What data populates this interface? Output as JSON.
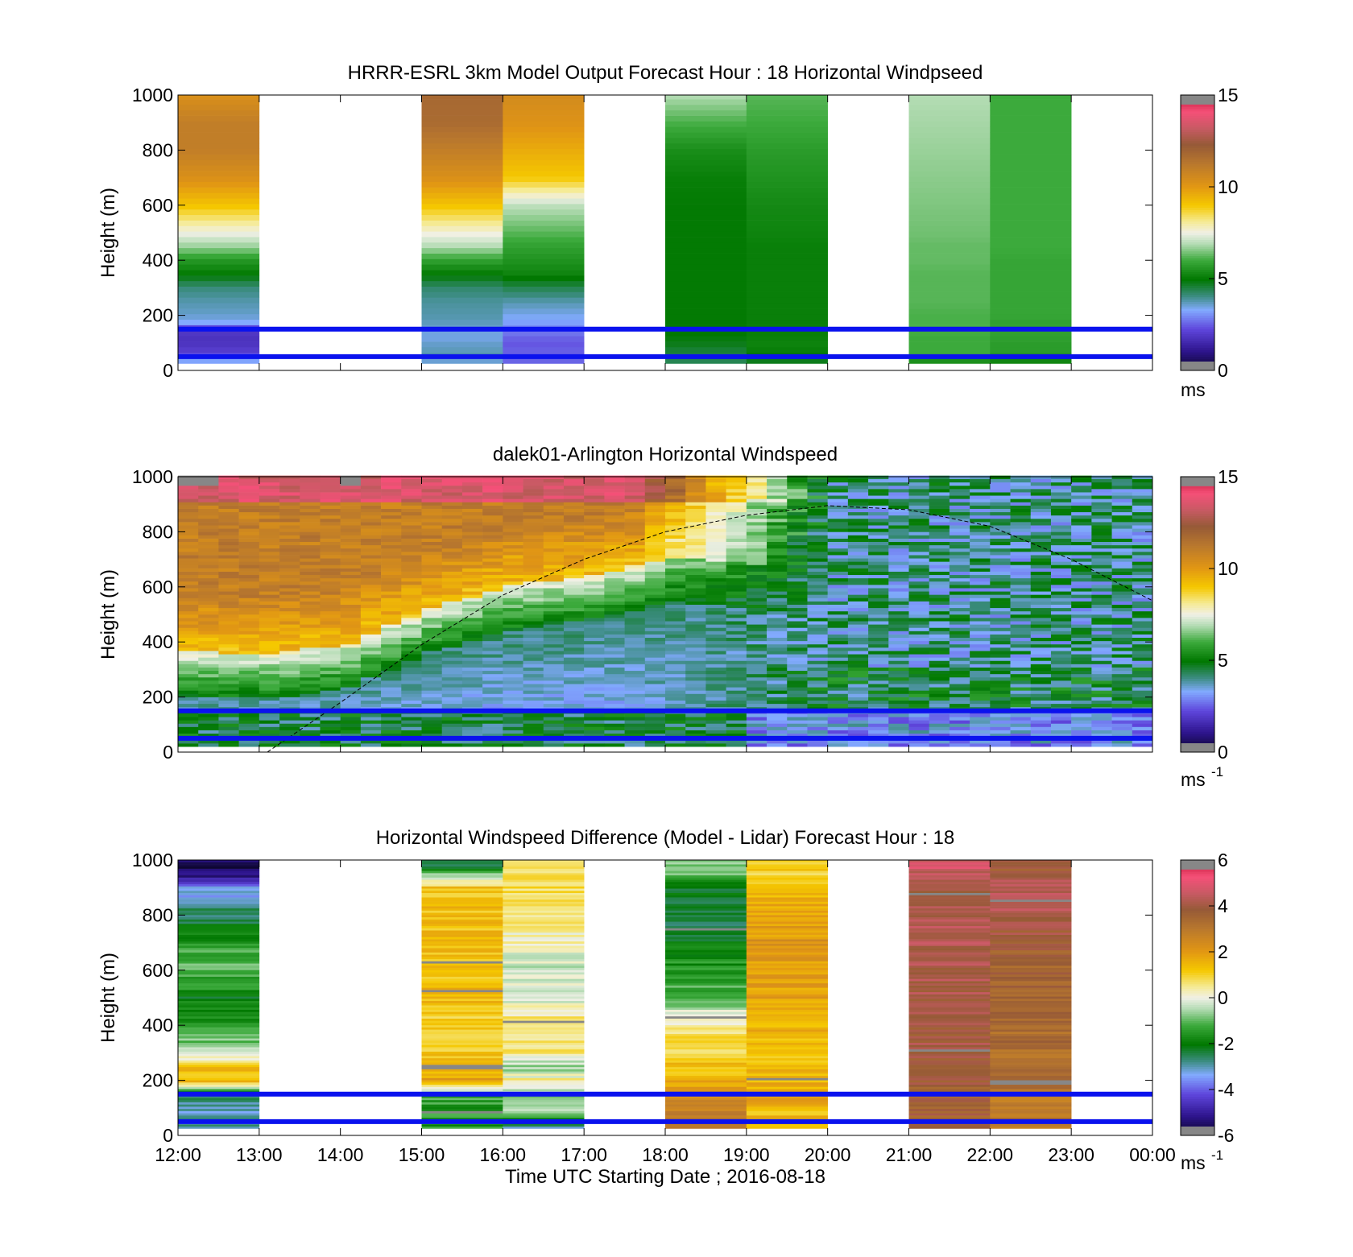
{
  "figure": {
    "xlabel": "Time UTC  Starting Date ; 2016-08-18",
    "x_ticks": [
      "12:00",
      "13:00",
      "14:00",
      "15:00",
      "16:00",
      "17:00",
      "18:00",
      "19:00",
      "20:00",
      "21:00",
      "22:00",
      "23:00",
      "00:00"
    ],
    "reference_heights_m": [
      50,
      150
    ],
    "reference_line_color": "#0a12ee"
  },
  "chart_data": [
    {
      "type": "heatmap",
      "title": "HRRR-ESRL 3km Model Output   Forecast Hour : 18 Horizontal Windpseed",
      "ylabel": "Height (m)",
      "xlim": [
        12,
        24
      ],
      "ylim": [
        0,
        1000
      ],
      "y_ticks": [
        "0",
        "200",
        "400",
        "600",
        "800",
        "1000"
      ],
      "colorbar": {
        "min": 0,
        "max": 15,
        "ticks": [
          "0",
          "5",
          "10",
          "15"
        ],
        "label": "ms"
      },
      "z_heights_m": [
        25,
        50,
        75,
        100,
        125,
        150,
        175,
        200,
        250,
        300,
        350,
        400,
        450,
        500,
        600,
        700,
        800,
        900,
        1000
      ],
      "columns": [
        {
          "start_hour": 12,
          "values": [
            3.8,
            2.4,
            2.0,
            1.8,
            1.8,
            2.0,
            3.3,
            3.6,
            3.8,
            4.1,
            5.0,
            5.6,
            6.7,
            7.5,
            9.1,
            10.3,
            11.0,
            11.0,
            10.3
          ]
        },
        {
          "start_hour": 15,
          "values": [
            3.4,
            3.8,
            3.7,
            3.6,
            3.4,
            3.6,
            3.7,
            3.8,
            3.9,
            4.2,
            5.0,
            5.8,
            6.9,
            7.6,
            9.1,
            10.3,
            11.0,
            11.7,
            11.8
          ]
        },
        {
          "start_hour": 16,
          "values": [
            2.6,
            2.5,
            2.5,
            2.4,
            2.6,
            2.9,
            3.2,
            3.4,
            3.8,
            4.4,
            5.2,
            5.5,
            5.8,
            6.2,
            7.0,
            9.0,
            9.6,
            10.2,
            10.5
          ]
        },
        {
          "start_hour": 18,
          "values": [
            4.3,
            4.5,
            4.6,
            4.8,
            4.9,
            5.0,
            5.0,
            5.0,
            5.0,
            5.0,
            5.0,
            5.0,
            5.0,
            5.0,
            5.0,
            5.1,
            5.4,
            6.1,
            6.9
          ]
        },
        {
          "start_hour": 19,
          "values": [
            4.6,
            5.0,
            5.1,
            5.2,
            5.1,
            5.1,
            5.1,
            5.1,
            5.1,
            5.1,
            5.1,
            5.1,
            5.1,
            5.2,
            5.3,
            5.5,
            5.7,
            6.0,
            6.2
          ]
        },
        {
          "start_hour": 21,
          "values": [
            5.1,
            6.0,
            6.0,
            6.0,
            6.0,
            6.1,
            6.1,
            6.1,
            6.2,
            6.2,
            6.2,
            6.3,
            6.3,
            6.4,
            6.5,
            6.6,
            6.7,
            6.8,
            6.9
          ]
        },
        {
          "start_hour": 22,
          "values": [
            5.0,
            5.6,
            5.7,
            5.7,
            5.8,
            5.8,
            5.8,
            5.9,
            5.9,
            5.9,
            5.9,
            5.9,
            6.0,
            6.0,
            6.0,
            6.0,
            6.0,
            6.0,
            6.0
          ]
        }
      ]
    },
    {
      "type": "heatmap",
      "title": "dalek01-Arlington  Horizontal Windspeed",
      "ylabel": "Height (m)",
      "xlim": [
        12,
        24
      ],
      "ylim": [
        0,
        1000
      ],
      "y_ticks": [
        "0",
        "200",
        "400",
        "600",
        "800",
        "1000"
      ],
      "colorbar": {
        "min": 0,
        "max": 15,
        "ticks": [
          "0",
          "5",
          "10",
          "15"
        ],
        "label": "ms",
        "label_sup": "-1"
      },
      "time_step_hours": 0.25,
      "time_range_hours": [
        12,
        23.83
      ],
      "boundary_layer_top_m": [
        [
          12,
          280
        ],
        [
          13,
          270
        ],
        [
          14,
          310
        ],
        [
          15,
          440
        ],
        [
          16,
          520
        ],
        [
          17,
          560
        ],
        [
          18,
          620
        ],
        [
          19,
          600
        ],
        [
          20,
          560
        ],
        [
          21,
          520
        ],
        [
          22,
          500
        ],
        [
          23,
          470
        ],
        [
          23.8,
          460
        ]
      ],
      "wind_speed_ms": {
        "below_boundary_layer": 2.5,
        "above_boundary_layer": 11.0,
        "near_surface": 4.6
      },
      "curve": [
        [
          13.1,
          0
        ],
        [
          14.0,
          180
        ],
        [
          15.0,
          390
        ],
        [
          16.0,
          570
        ],
        [
          17.0,
          700
        ],
        [
          18.0,
          800
        ],
        [
          19.0,
          860
        ],
        [
          20.0,
          895
        ],
        [
          21.0,
          880
        ],
        [
          22.0,
          820
        ],
        [
          23.0,
          700
        ],
        [
          24.0,
          550
        ]
      ]
    },
    {
      "type": "heatmap",
      "title": "Horizontal Windspeed Difference (Model - Lidar) Forecast Hour : 18",
      "ylabel": "Height (m)",
      "xlim": [
        12,
        24
      ],
      "ylim": [
        0,
        1000
      ],
      "y_ticks": [
        "0",
        "200",
        "400",
        "600",
        "800",
        "1000"
      ],
      "colorbar": {
        "min": -6,
        "max": 6,
        "ticks": [
          "-6",
          "-4",
          "-2",
          "0",
          "2",
          "4",
          "6"
        ],
        "label": "ms",
        "label_sup": "-1"
      },
      "z_heights_m": [
        25,
        100,
        150,
        200,
        250,
        300,
        400,
        500,
        600,
        700,
        800,
        900,
        950,
        1000
      ],
      "columns": [
        {
          "start_hour": 12,
          "values": [
            -3.0,
            -3.2,
            -2.5,
            1.5,
            1.2,
            -0.3,
            -1.5,
            -2.0,
            -1.0,
            -1.5,
            -2.5,
            -3.5,
            -5.5,
            null
          ]
        },
        {
          "start_hour": 15,
          "values": [
            -1.5,
            -1.5,
            -1.2,
            2.0,
            1.2,
            1.2,
            1.0,
            1.5,
            1.3,
            1.3,
            1.3,
            1.3,
            -1.0,
            -3.0
          ]
        },
        {
          "start_hour": 16,
          "values": [
            -3.0,
            -0.5,
            -0.8,
            0.5,
            -0.8,
            0.6,
            0.8,
            -0.2,
            -0.3,
            0.2,
            0.5,
            0.8,
            0.7,
            0.4
          ]
        },
        {
          "start_hour": 18,
          "values": [
            2.8,
            2.8,
            2.3,
            1.5,
            1.3,
            1.0,
            0.5,
            -1.0,
            -1.5,
            -2.0,
            -2.5,
            -2.0,
            -1.0,
            -0.5
          ]
        },
        {
          "start_hour": 19,
          "values": [
            1.2,
            1.5,
            1.8,
            1.5,
            1.3,
            1.4,
            1.6,
            1.8,
            2.0,
            2.1,
            1.8,
            1.5,
            1.0,
            1.0
          ]
        },
        {
          "start_hour": 21,
          "values": [
            3.7,
            3.7,
            3.7,
            3.8,
            3.9,
            4.0,
            4.0,
            4.1,
            4.1,
            4.3,
            4.2,
            4.2,
            4.5,
            4.8
          ]
        },
        {
          "start_hour": 22,
          "values": [
            3.0,
            3.0,
            3.0,
            3.2,
            3.3,
            3.3,
            3.4,
            3.5,
            3.6,
            3.8,
            4.2,
            4.4,
            4.0,
            3.6
          ]
        }
      ]
    }
  ]
}
